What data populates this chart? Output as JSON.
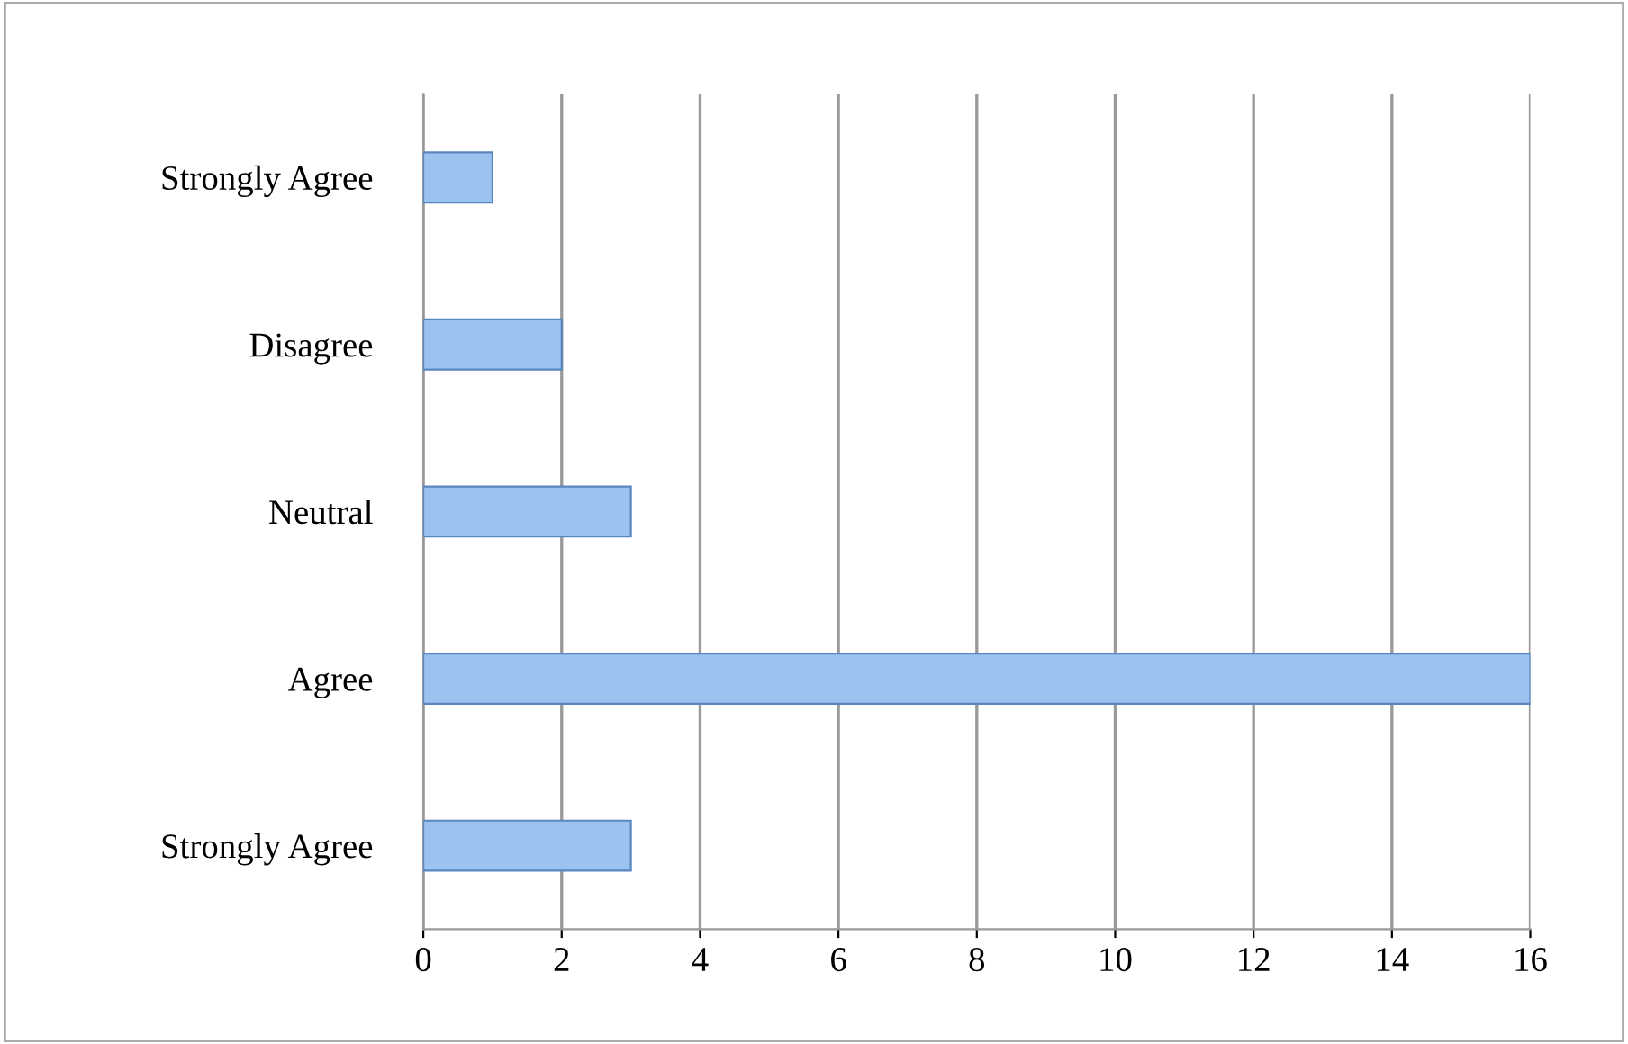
{
  "chart_data": {
    "type": "bar",
    "orientation": "horizontal",
    "categories": [
      "Strongly Agree",
      "Disagree",
      "Neutral",
      "Agree",
      "Strongly Agree"
    ],
    "values": [
      1,
      2,
      3,
      16,
      3
    ],
    "color": "#9cc3f0",
    "xlim": [
      0,
      16
    ],
    "xticks": [
      0,
      2,
      4,
      6,
      8,
      10,
      12,
      14,
      16
    ],
    "grid": "x",
    "legend": false
  }
}
